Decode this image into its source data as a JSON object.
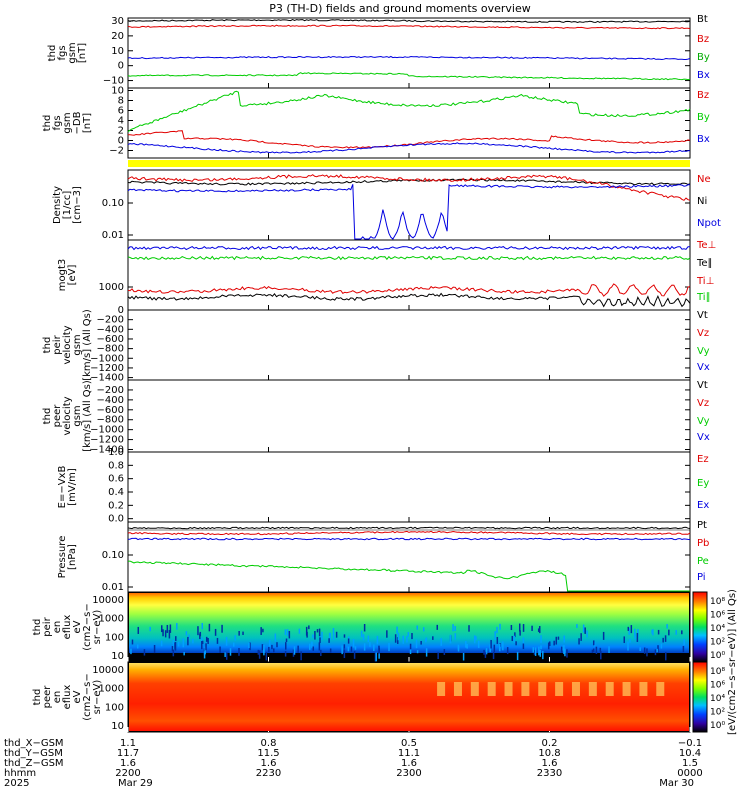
{
  "title": "P3 (TH-D) fields and ground moments overview",
  "colors": {
    "black": "#000000",
    "red": "#e00000",
    "green": "#00cc00",
    "blue": "#0000e0",
    "yellow": "#ffff00"
  },
  "chart_data": [
    {
      "type": "line",
      "ylabel": [
        "thd",
        "fgs",
        "gsm",
        "[nT]"
      ],
      "yticks": [
        "30",
        "20",
        "10",
        "0",
        "−10"
      ],
      "ylim": [
        -15,
        32
      ],
      "series": [
        {
          "name": "Bt",
          "color": "#000000",
          "level": 30
        },
        {
          "name": "Bz",
          "color": "#e00000",
          "level": 26
        },
        {
          "name": "By",
          "color": "#00aa00",
          "level": -8
        },
        {
          "name": "Bx",
          "color": "#0000e0",
          "level": 5
        }
      ]
    },
    {
      "type": "line",
      "ylabel": [
        "thd",
        "fgs",
        "gsm",
        "−DB",
        "[nT]"
      ],
      "yticks": [
        "10",
        "8",
        "6",
        "4",
        "2",
        "0",
        "−2"
      ],
      "ylim": [
        -3.5,
        10.5
      ],
      "series": [
        {
          "name": "Bz",
          "color": "#e00000"
        },
        {
          "name": "By",
          "color": "#00cc00"
        },
        {
          "name": "Bx",
          "color": "#0000e0"
        }
      ]
    },
    {
      "type": "line",
      "ylabel": [
        "Density",
        "[1/cc]",
        "[cm−3]"
      ],
      "yticks": [
        "0.10",
        "0.01"
      ],
      "yscale": "log",
      "series": [
        {
          "name": "Ne",
          "color": "#e00000"
        },
        {
          "name": "Ni",
          "color": "#000000"
        },
        {
          "name": "Npot",
          "color": "#0000e0"
        }
      ]
    },
    {
      "type": "line",
      "ylabel": [
        "mogt3",
        "[eV]"
      ],
      "yticks": [
        "1000"
      ],
      "yscale": "log",
      "series": [
        {
          "name": "Te⊥",
          "color": "#e00000"
        },
        {
          "name": "Te∥",
          "color": "#000000"
        },
        {
          "name": "Ti⊥",
          "color": "#e00000"
        },
        {
          "name": "Ti∥",
          "color": "#00cc00"
        }
      ]
    },
    {
      "type": "line",
      "ylabel": [
        "thd",
        "peir",
        "velocity",
        "gsm",
        "[km/s] (All Qs)"
      ],
      "yticks": [
        "0",
        "−200",
        "−400",
        "−600",
        "−800",
        "−1000",
        "−1200",
        "−1400"
      ],
      "ylim": [
        -1450,
        0
      ],
      "series": [
        {
          "name": "Vt",
          "color": "#000000"
        },
        {
          "name": "Vz",
          "color": "#e00000"
        },
        {
          "name": "Vy",
          "color": "#00cc00"
        },
        {
          "name": "Vx",
          "color": "#0000e0"
        }
      ]
    },
    {
      "type": "line",
      "ylabel": [
        "thd",
        "peer",
        "velocity",
        "gsm",
        "[km/s] (All Qs)"
      ],
      "yticks": [
        "−200",
        "−400",
        "−600",
        "−800",
        "−1000",
        "−1200",
        "−1400"
      ],
      "ylim": [
        -1450,
        0
      ],
      "series": [
        {
          "name": "Vt",
          "color": "#000000"
        },
        {
          "name": "Vz",
          "color": "#e00000"
        },
        {
          "name": "Vy",
          "color": "#00cc00"
        },
        {
          "name": "Vx",
          "color": "#0000e0"
        }
      ]
    },
    {
      "type": "line",
      "ylabel": [
        "E=−VxB",
        "[mV/m]"
      ],
      "yticks": [
        "1.0",
        "0.8",
        "0.6",
        "0.4",
        "0.2",
        "0.0"
      ],
      "ylim": [
        -0.05,
        1.0
      ],
      "series": [
        {
          "name": "Ez",
          "color": "#e00000"
        },
        {
          "name": "Ey",
          "color": "#00cc00"
        },
        {
          "name": "Ex",
          "color": "#0000e0"
        }
      ]
    },
    {
      "type": "line",
      "ylabel": [
        "Pressure",
        "[nPa]"
      ],
      "yticks": [
        "0.10",
        "0.01"
      ],
      "yscale": "log",
      "series": [
        {
          "name": "Pt",
          "color": "#000000"
        },
        {
          "name": "Pb",
          "color": "#e00000"
        },
        {
          "name": "Pe",
          "color": "#00cc00"
        },
        {
          "name": "Pi",
          "color": "#0000e0"
        }
      ]
    },
    {
      "type": "heatmap",
      "ylabel": [
        "thd",
        "peir",
        "en",
        "eflux",
        "eV",
        "(cm2−s−",
        "sr−eV)"
      ],
      "yticks": [
        "10000",
        "1000",
        "100",
        "10"
      ],
      "yscale": "log"
    },
    {
      "type": "heatmap",
      "ylabel": [
        "thd",
        "peer",
        "en",
        "eflux",
        "eV",
        "(cm2−s−",
        "sr−eV)"
      ],
      "yticks": [
        "10000",
        "1000",
        "100",
        "10"
      ],
      "yscale": "log"
    }
  ],
  "colorbar": {
    "label": "[eV/(cm2−s−sr−eV)] (All Qs)",
    "ticks": [
      "10⁸",
      "10⁶",
      "10⁴",
      "10²",
      "10⁰"
    ],
    "ticks_lower": [
      "10⁸",
      "10⁶",
      "10⁴",
      "10²",
      "10⁰"
    ]
  },
  "xaxis": {
    "rows": [
      {
        "label": "thd_X−GSM",
        "values": [
          "1.1",
          "0.8",
          "0.5",
          "0.2",
          "−0.1"
        ]
      },
      {
        "label": "thd_Y−GSM",
        "values": [
          "11.7",
          "11.5",
          "11.1",
          "10.8",
          "10.4"
        ]
      },
      {
        "label": "thd_Z−GSM",
        "values": [
          "1.6",
          "1.6",
          "1.6",
          "1.6",
          "1.5"
        ]
      },
      {
        "label": "hhmm",
        "values": [
          "2200",
          "2230",
          "2300",
          "2330",
          "0000"
        ]
      },
      {
        "label": "2025",
        "values": [
          "Mar 29",
          "",
          "",
          "",
          "Mar 30"
        ]
      }
    ]
  }
}
